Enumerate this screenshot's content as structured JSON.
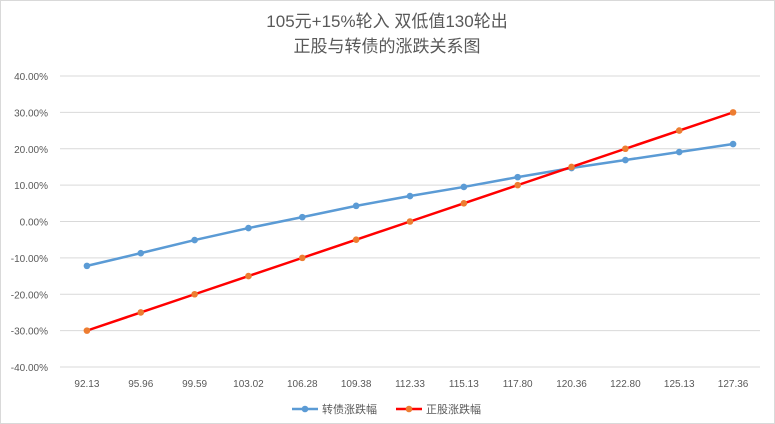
{
  "chart_data": {
    "type": "line",
    "title": [
      "105元+15%轮入 双低值130轮出",
      "正股与转债的涨跌关系图"
    ],
    "xlabel": "",
    "ylabel": "",
    "categories": [
      "92.13",
      "95.96",
      "99.59",
      "103.02",
      "106.28",
      "109.38",
      "112.33",
      "115.13",
      "117.80",
      "120.36",
      "122.80",
      "125.13",
      "127.36"
    ],
    "ylim": [
      -40,
      40
    ],
    "yticks": [
      40,
      30,
      20,
      10,
      0,
      -10,
      -20,
      -30,
      -40
    ],
    "ytick_labels": [
      "40.00%",
      "30.00%",
      "20.00%",
      "10.00%",
      "0.00%",
      "-10.00%",
      "-20.00%",
      "-30.00%",
      "-40.00%"
    ],
    "grid": true,
    "legend_position": "bottom",
    "series": [
      {
        "name": "转债涨跌幅",
        "color": "#5b9bd5",
        "marker_color": "#5b9bd5",
        "values": [
          -12.2,
          -8.7,
          -5.1,
          -1.8,
          1.2,
          4.3,
          7.0,
          9.5,
          12.2,
          14.7,
          16.9,
          19.1,
          21.3
        ]
      },
      {
        "name": "正股涨跌幅",
        "color": "#ff0000",
        "marker_color": "#ed7d31",
        "values": [
          -30,
          -25,
          -20,
          -15,
          -10,
          -5,
          0,
          5,
          10,
          15,
          20,
          25,
          30
        ]
      }
    ]
  }
}
